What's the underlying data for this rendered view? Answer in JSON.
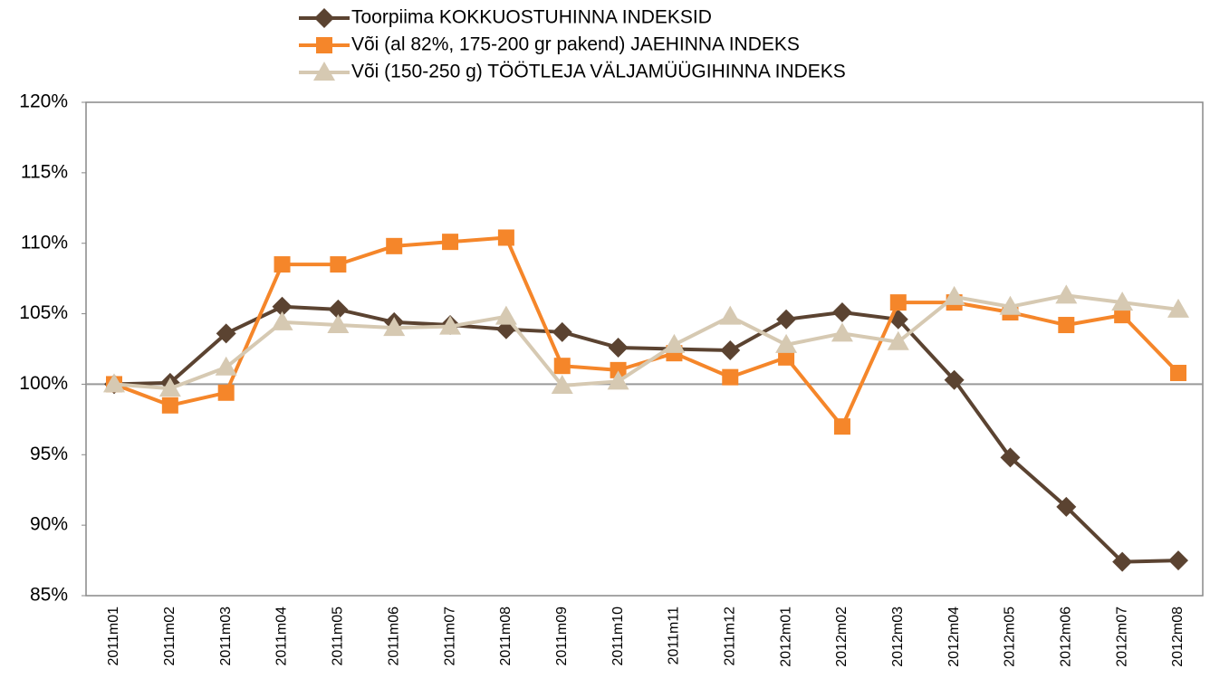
{
  "chart_data": {
    "type": "line",
    "categories": [
      "2011m01",
      "2011m02",
      "2011m03",
      "2011m04",
      "2011m05",
      "2011m06",
      "2011m07",
      "2011m08",
      "2011m09",
      "2011m10",
      "2011m11",
      "2011m12",
      "2012m01",
      "2012m02",
      "2012m03",
      "2012m04",
      "2012m05",
      "2012m06",
      "2012m07",
      "2012m08"
    ],
    "series": [
      {
        "name": "Toorpiima KOKKUOSTUHINNA INDEKSID",
        "color": "#5b4331",
        "marker": "diamond",
        "values": [
          100,
          100.1,
          103.6,
          105.5,
          105.3,
          104.4,
          104.2,
          103.9,
          103.7,
          102.6,
          102.5,
          102.4,
          104.6,
          105.1,
          104.6,
          100.3,
          94.8,
          91.3,
          87.4,
          87.5
        ]
      },
      {
        "name": "Või (al 82%, 175-200 gr pakend) JAEHINNA INDEKS",
        "color": "#f5862a",
        "marker": "square",
        "values": [
          100,
          98.5,
          99.4,
          108.5,
          108.5,
          109.8,
          110.1,
          110.4,
          101.3,
          101.0,
          102.2,
          100.5,
          101.9,
          97.0,
          105.8,
          105.8,
          105.1,
          104.2,
          104.9,
          100.8
        ]
      },
      {
        "name": "Või (150-250 g) TÖÖTLEJA VÄLJAMÜÜGIHINNA INDEKS",
        "color": "#d6c9b2",
        "marker": "triangle",
        "values": [
          100,
          99.7,
          101.2,
          104.4,
          104.2,
          104.0,
          104.1,
          104.8,
          99.9,
          100.2,
          102.8,
          104.8,
          102.8,
          103.6,
          103.0,
          106.2,
          105.5,
          106.3,
          105.8,
          105.3
        ]
      }
    ],
    "ylim": [
      85,
      120
    ],
    "yticks": [
      {
        "value": 85,
        "label": "85%"
      },
      {
        "value": 90,
        "label": "90%"
      },
      {
        "value": 95,
        "label": "95%"
      },
      {
        "value": 100,
        "label": "100%"
      },
      {
        "value": 105,
        "label": "105%"
      },
      {
        "value": 110,
        "label": "110%"
      },
      {
        "value": 115,
        "label": "115%"
      },
      {
        "value": 120,
        "label": "120%"
      }
    ],
    "reference_line": 100,
    "grid": false,
    "legend": "top"
  }
}
